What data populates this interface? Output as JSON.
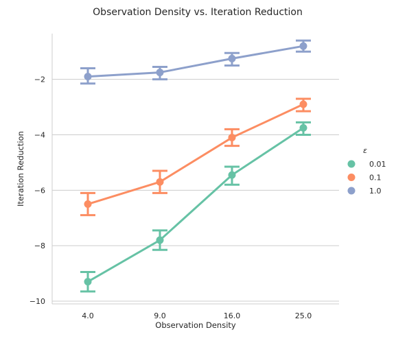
{
  "chart_data": {
    "type": "line",
    "title": "Observation Density vs. Iteration Reduction",
    "xlabel": "Observation Density",
    "ylabel": "Iteration Reduction",
    "categories": [
      "4.0",
      "9.0",
      "16.0",
      "25.0"
    ],
    "ylim": [
      -10.1,
      -0.35
    ],
    "yticks": [
      -10,
      -8,
      -6,
      -4,
      -2
    ],
    "yticklabels": [
      "−10",
      "−8",
      "−6",
      "−4",
      "−2"
    ],
    "grid": "horizontal",
    "legend": {
      "title": "ε",
      "placement": "right"
    },
    "series": [
      {
        "name": "0.01",
        "color": "#66c2a5",
        "values": [
          -9.3,
          -7.8,
          -5.45,
          -3.75
        ],
        "err_low": [
          -9.65,
          -8.15,
          -5.8,
          -4.0
        ],
        "err_high": [
          -8.95,
          -7.45,
          -5.15,
          -3.55
        ]
      },
      {
        "name": "0.1",
        "color": "#fc8d62",
        "values": [
          -6.5,
          -5.7,
          -4.1,
          -2.9
        ],
        "err_low": [
          -6.9,
          -6.1,
          -4.4,
          -3.15
        ],
        "err_high": [
          -6.1,
          -5.3,
          -3.8,
          -2.7
        ]
      },
      {
        "name": "1.0",
        "color": "#8da0cb",
        "values": [
          -1.9,
          -1.75,
          -1.25,
          -0.8
        ],
        "err_low": [
          -2.15,
          -2.0,
          -1.5,
          -1.0
        ],
        "err_high": [
          -1.6,
          -1.55,
          -1.05,
          -0.6
        ]
      }
    ]
  }
}
